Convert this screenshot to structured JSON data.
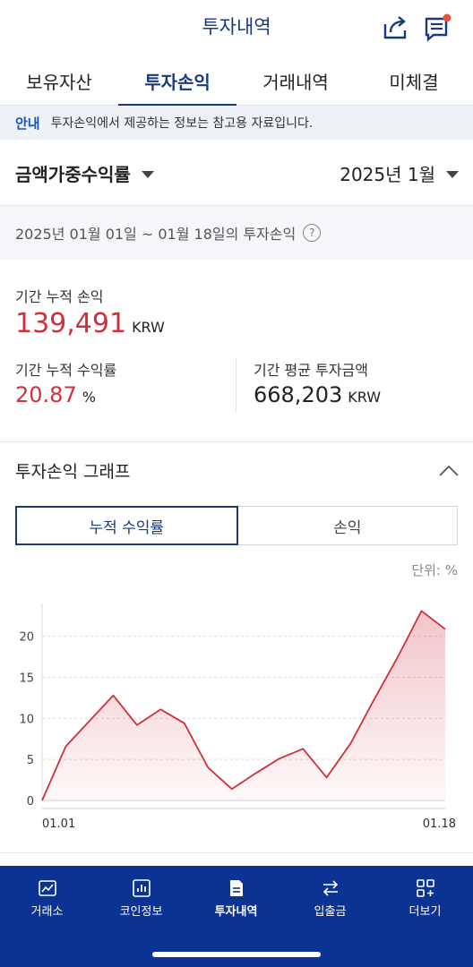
{
  "header": {
    "title": "투자내역",
    "share_icon": "share-icon",
    "notice_icon": "notice-icon"
  },
  "tabs": [
    {
      "label": "보유자산"
    },
    {
      "label": "투자손익"
    },
    {
      "label": "거래내역"
    },
    {
      "label": "미체결"
    }
  ],
  "notice": {
    "tag": "안내",
    "text": "투자손익에서 제공하는 정보는 참고용 자료입니다."
  },
  "filter": {
    "method": "금액가중수익률",
    "month": "2025년 1월"
  },
  "period": {
    "text": "2025년 01월 01일 ~ 01월 18일의 투자손익"
  },
  "summary": {
    "cum_profit_label": "기간 누적 손익",
    "cum_profit_value": "139,491",
    "cum_profit_unit": "KRW",
    "cum_return_label": "기간 누적 수익률",
    "cum_return_value": "20.87",
    "cum_return_unit": "%",
    "avg_invest_label": "기간 평균 투자금액",
    "avg_invest_value": "668,203",
    "avg_invest_unit": "KRW"
  },
  "graph": {
    "title": "투자손익 그래프",
    "toggle_return": "누적 수익률",
    "toggle_profit": "손익",
    "unit_note": "단위: %"
  },
  "chart_data": {
    "type": "area",
    "x": [
      "01.01",
      "01.02",
      "01.03",
      "01.04",
      "01.05",
      "01.06",
      "01.07",
      "01.08",
      "01.09",
      "01.10",
      "01.11",
      "01.12",
      "01.13",
      "01.14",
      "01.15",
      "01.16",
      "01.17",
      "01.18"
    ],
    "values": [
      0,
      6.6,
      9.7,
      12.8,
      9.2,
      11.1,
      9.4,
      4.0,
      1.4,
      3.3,
      5.1,
      6.3,
      2.8,
      6.9,
      12.3,
      17.5,
      23.1,
      20.87
    ],
    "y_ticks": [
      0,
      5,
      10,
      15,
      20
    ],
    "x_tick_labels": [
      "01.01",
      "01.18"
    ],
    "ylim": [
      0,
      24
    ],
    "grid": true,
    "color": "#d0303c"
  },
  "bottom_nav": [
    {
      "label": "거래소",
      "icon": "exchange-chart-icon"
    },
    {
      "label": "코인정보",
      "icon": "bar-chart-icon"
    },
    {
      "label": "투자내역",
      "icon": "document-icon"
    },
    {
      "label": "입출금",
      "icon": "transfer-arrows-icon"
    },
    {
      "label": "더보기",
      "icon": "grid-plus-icon"
    }
  ],
  "colors": {
    "brand": "#0b3393",
    "accent_red": "#d0303c",
    "tab_active": "#1a3a7a"
  }
}
